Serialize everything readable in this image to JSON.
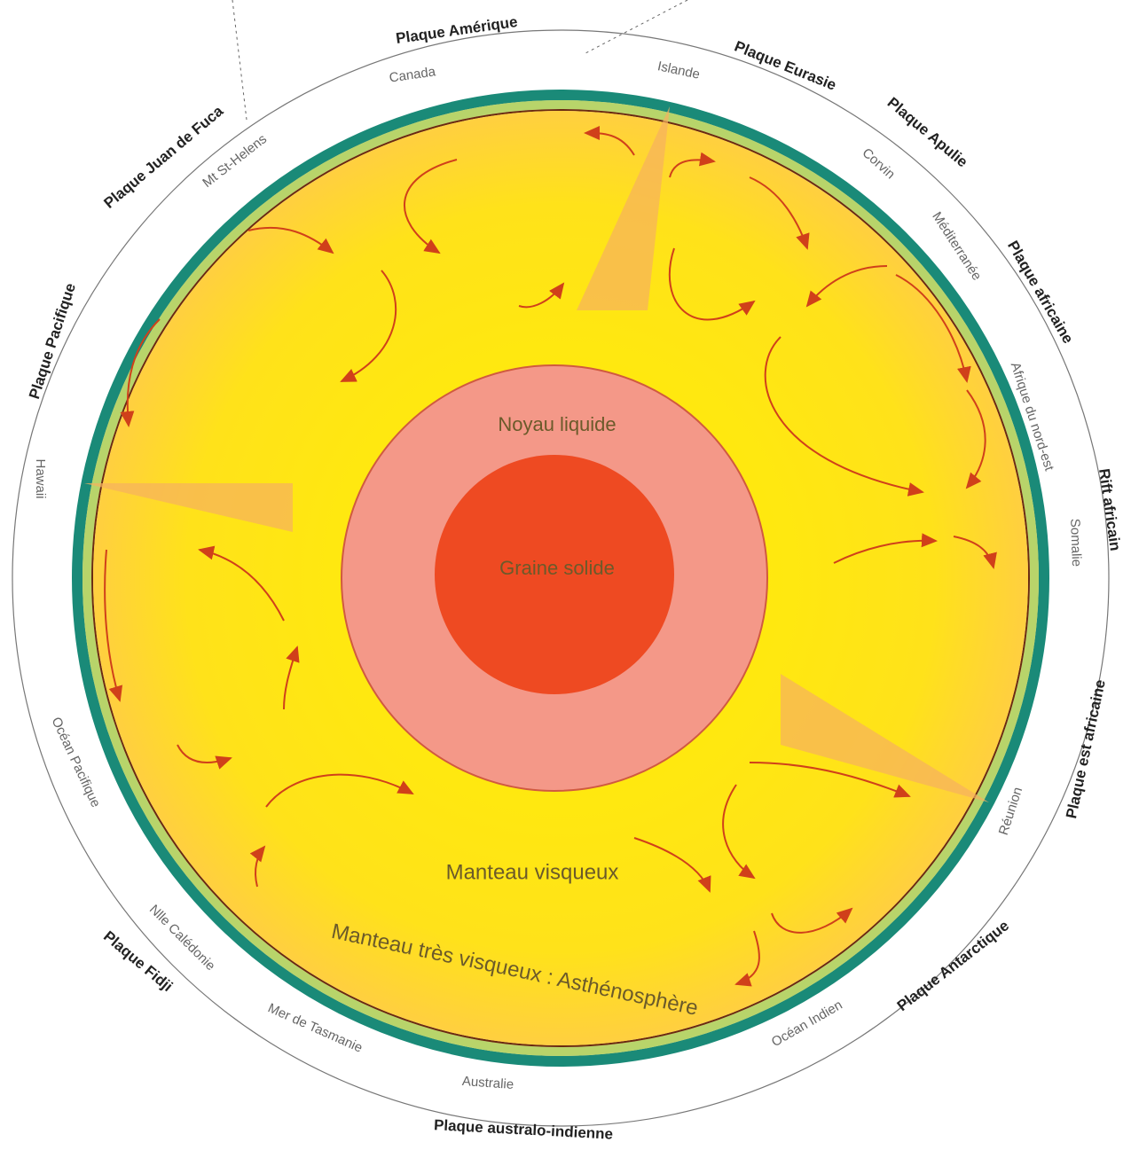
{
  "plates": [
    "Plaque Amérique",
    "Plaque Eurasie",
    "Plaque Apulie",
    "Plaque africaine",
    "Rift africain",
    "Plaque est africaine",
    "Plaque Antarctique",
    "Plaque australo-indienne",
    "Plaque Fidji",
    "Plaque Pacifique",
    "Plaque Juan de Fuca"
  ],
  "places": [
    "Canada",
    "Islande",
    "Mt St-Helens",
    "Corvin",
    "Méditerranée",
    "Afrique du nord-est",
    "Somalie",
    "Réunion",
    "Océan Indien",
    "Australie",
    "Mer de Tasmanie",
    "Nlle Calédonie",
    "Océan Pacifique",
    "Hawaii"
  ],
  "layers": {
    "outer_core": "Noyau liquide",
    "inner_core": "Graine solide",
    "mantle": "Manteau visqueux",
    "asthenosphere": "Manteau très visqueux : Asthénosphère"
  }
}
